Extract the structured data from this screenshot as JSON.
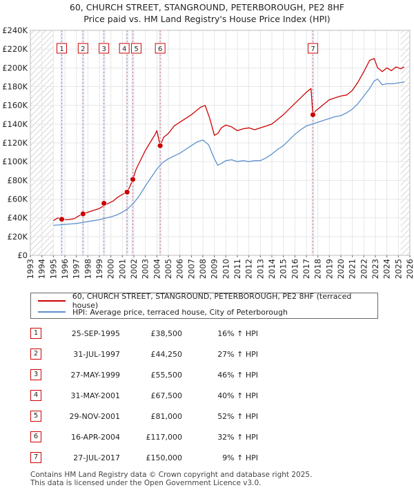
{
  "chart_data": {
    "type": "line",
    "title": "60, CHURCH STREET, STANGROUND, PETERBOROUGH, PE2 8HF",
    "subtitle": "Price paid vs. HM Land Registry's House Price Index (HPI)",
    "xlim": [
      1993,
      2026
    ],
    "ylim": [
      0,
      240000
    ],
    "x_ticks": [
      1993,
      1994,
      1995,
      1996,
      1997,
      1998,
      1999,
      2000,
      2001,
      2002,
      2003,
      2004,
      2005,
      2006,
      2007,
      2008,
      2009,
      2010,
      2011,
      2012,
      2013,
      2014,
      2015,
      2016,
      2017,
      2018,
      2019,
      2020,
      2021,
      2022,
      2023,
      2024,
      2025,
      2026
    ],
    "y_ticks": [
      0,
      20000,
      40000,
      60000,
      80000,
      100000,
      120000,
      140000,
      160000,
      180000,
      200000,
      220000,
      240000
    ],
    "y_tick_labels": [
      "£0",
      "£20K",
      "£40K",
      "£60K",
      "£80K",
      "£100K",
      "£120K",
      "£140K",
      "£160K",
      "£180K",
      "£200K",
      "£220K",
      "£240K"
    ],
    "hatch_before": 1995.0,
    "hatch_after": 2025.2,
    "colors": {
      "property": "#cc0000",
      "hpi": "#5b8fcc",
      "marker_line": "#e07070",
      "band": "#dde6f3"
    },
    "series": [
      {
        "name": "60, CHURCH STREET, STANGROUND, PETERBOROUGH, PE2 8HF (terraced house)",
        "color": "#cc0000",
        "x": [
          1995.0,
          1995.4,
          1995.73,
          1996.2,
          1996.8,
          1997.2,
          1997.58,
          1998.0,
          1998.5,
          1999.0,
          1999.4,
          1999.8,
          2000.2,
          2000.6,
          2001.0,
          2001.41,
          2001.6,
          2001.91,
          2002.2,
          2002.6,
          2003.0,
          2003.4,
          2003.8,
          2004.0,
          2004.29,
          2004.6,
          2005.0,
          2005.5,
          2006.0,
          2006.5,
          2007.0,
          2007.5,
          2007.8,
          2008.2,
          2008.6,
          2009.0,
          2009.3,
          2009.6,
          2010.0,
          2010.5,
          2011.0,
          2011.5,
          2012.0,
          2012.5,
          2013.0,
          2013.5,
          2014.0,
          2014.5,
          2015.0,
          2015.5,
          2016.0,
          2016.5,
          2017.0,
          2017.4,
          2017.57,
          2017.8,
          2018.2,
          2018.6,
          2019.0,
          2019.5,
          2020.0,
          2020.5,
          2021.0,
          2021.5,
          2022.0,
          2022.5,
          2022.9,
          2023.2,
          2023.6,
          2024.0,
          2024.4,
          2024.8,
          2025.2,
          2025.5
        ],
        "y": [
          37000,
          40000,
          38500,
          38000,
          39000,
          42000,
          44250,
          46000,
          48000,
          50000,
          53000,
          55500,
          58000,
          62000,
          65000,
          67500,
          72000,
          81000,
          92000,
          102000,
          112000,
          120000,
          128000,
          133000,
          117000,
          126000,
          130000,
          138000,
          142000,
          146000,
          150000,
          155000,
          158000,
          160000,
          146000,
          128000,
          130000,
          136000,
          139000,
          137000,
          133000,
          135000,
          136000,
          134000,
          136000,
          138000,
          140000,
          145000,
          150000,
          156000,
          162000,
          168000,
          174000,
          178000,
          150000,
          154000,
          158000,
          162000,
          166000,
          168000,
          170000,
          171000,
          176000,
          185000,
          196000,
          208000,
          210000,
          200000,
          196000,
          200000,
          197000,
          201000,
          199000,
          201000
        ],
        "markers": [
          [
            1995.73,
            38500
          ],
          [
            1997.58,
            44250
          ],
          [
            1999.4,
            55500
          ],
          [
            2001.41,
            67500
          ],
          [
            2001.91,
            81000
          ],
          [
            2004.29,
            117000
          ],
          [
            2017.57,
            150000
          ]
        ]
      },
      {
        "name": "HPI: Average price, terraced house, City of Peterborough",
        "color": "#5b8fcc",
        "x": [
          1995.0,
          1995.5,
          1996.0,
          1996.5,
          1997.0,
          1997.5,
          1998.0,
          1998.5,
          1999.0,
          1999.5,
          2000.0,
          2000.5,
          2001.0,
          2001.5,
          2002.0,
          2002.5,
          2003.0,
          2003.5,
          2004.0,
          2004.5,
          2005.0,
          2005.5,
          2006.0,
          2006.5,
          2007.0,
          2007.5,
          2008.0,
          2008.5,
          2009.0,
          2009.3,
          2009.6,
          2010.0,
          2010.5,
          2011.0,
          2011.5,
          2012.0,
          2012.5,
          2013.0,
          2013.5,
          2014.0,
          2014.5,
          2015.0,
          2015.5,
          2016.0,
          2016.5,
          2017.0,
          2017.5,
          2018.0,
          2018.5,
          2019.0,
          2019.5,
          2020.0,
          2020.5,
          2021.0,
          2021.5,
          2022.0,
          2022.5,
          2022.9,
          2023.2,
          2023.6,
          2024.0,
          2024.5,
          2025.0,
          2025.5
        ],
        "y": [
          32000,
          32500,
          33000,
          33500,
          34000,
          35000,
          36000,
          37000,
          38000,
          39500,
          41000,
          43000,
          46000,
          50000,
          56000,
          64000,
          74000,
          83000,
          92000,
          99000,
          103000,
          106000,
          109000,
          113000,
          117000,
          121000,
          123000,
          118000,
          103000,
          96000,
          98000,
          101000,
          102000,
          100000,
          101000,
          100000,
          101000,
          101000,
          104000,
          108000,
          113000,
          117000,
          123000,
          129000,
          134000,
          138000,
          140000,
          142000,
          144000,
          146000,
          148000,
          149000,
          152000,
          156000,
          162000,
          170000,
          178000,
          186000,
          188000,
          182000,
          183000,
          183000,
          184000,
          185000
        ]
      }
    ],
    "sale_marker_labels": [
      {
        "label": "1",
        "x": 1995.73
      },
      {
        "label": "2",
        "x": 1997.58
      },
      {
        "label": "3",
        "x": 1999.4
      },
      {
        "label": "4",
        "x": 2001.41
      },
      {
        "label": "5",
        "x": 2001.91
      },
      {
        "label": "6",
        "x": 2004.29
      },
      {
        "label": "7",
        "x": 2017.57
      }
    ]
  },
  "legend": {
    "property_label": "60, CHURCH STREET, STANGROUND, PETERBOROUGH, PE2 8HF (terraced house)",
    "hpi_label": "HPI: Average price, terraced house, City of Peterborough"
  },
  "sales": [
    {
      "num": "1",
      "date": "25-SEP-1995",
      "price": "£38,500",
      "hpi": "16% ↑ HPI"
    },
    {
      "num": "2",
      "date": "31-JUL-1997",
      "price": "£44,250",
      "hpi": "27% ↑ HPI"
    },
    {
      "num": "3",
      "date": "27-MAY-1999",
      "price": "£55,500",
      "hpi": "46% ↑ HPI"
    },
    {
      "num": "4",
      "date": "31-MAY-2001",
      "price": "£67,500",
      "hpi": "40% ↑ HPI"
    },
    {
      "num": "5",
      "date": "29-NOV-2001",
      "price": "£81,000",
      "hpi": "52% ↑ HPI"
    },
    {
      "num": "6",
      "date": "16-APR-2004",
      "price": "£117,000",
      "hpi": "32% ↑ HPI"
    },
    {
      "num": "7",
      "date": "27-JUL-2017",
      "price": "£150,000",
      "hpi": "9% ↑ HPI"
    }
  ],
  "footer": {
    "line1": "Contains HM Land Registry data © Crown copyright and database right 2025.",
    "line2": "This data is licensed under the Open Government Licence v3.0."
  }
}
